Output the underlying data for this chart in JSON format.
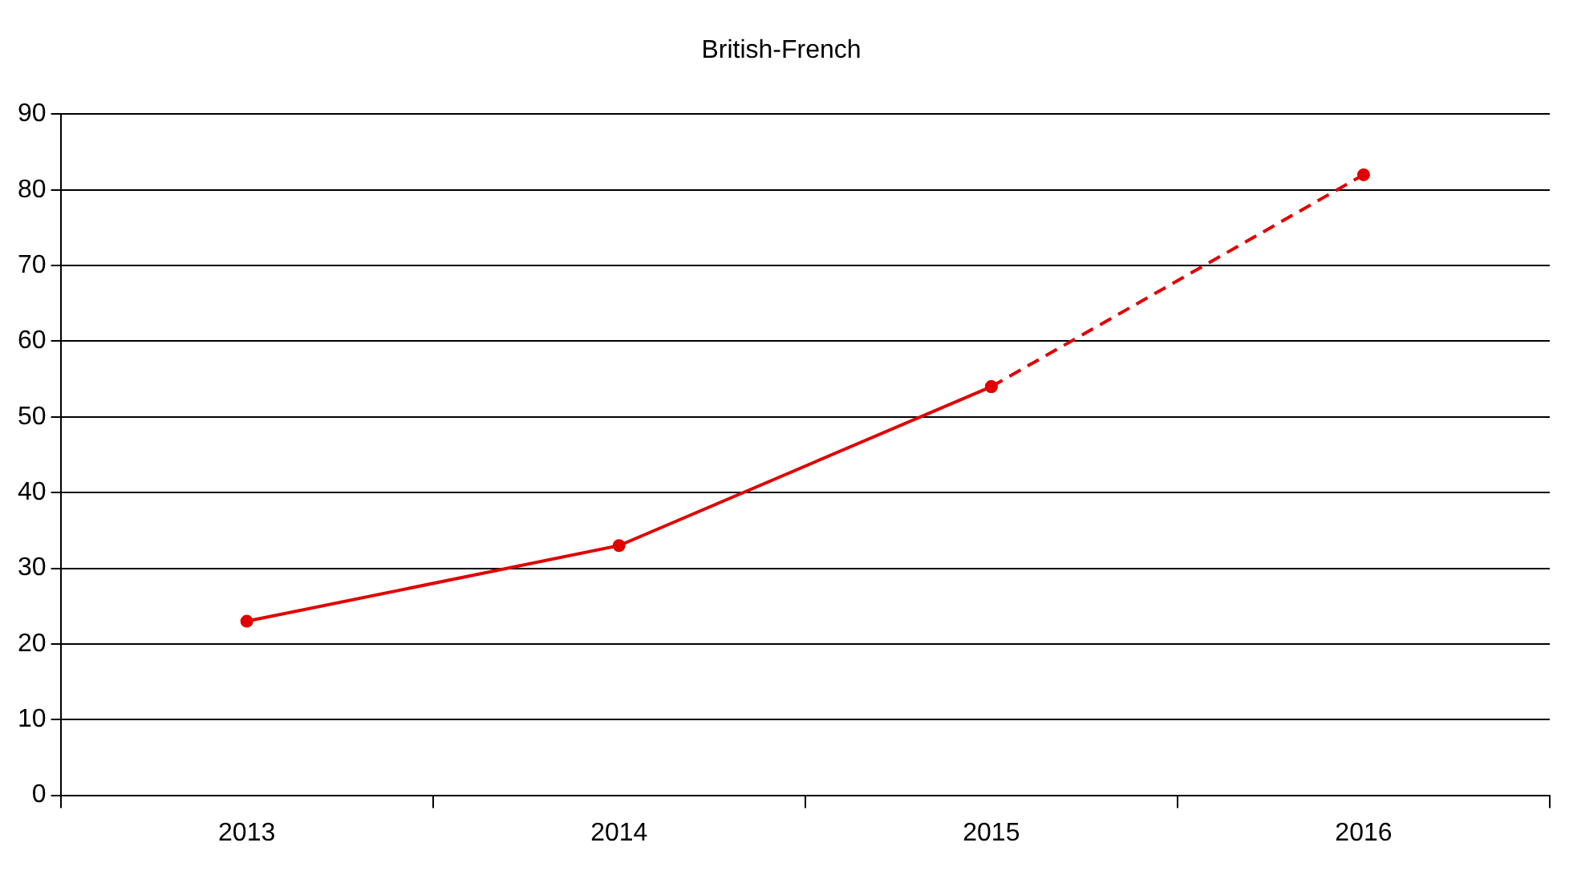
{
  "chart_data": {
    "type": "line",
    "title": "British-French",
    "categories": [
      "2013",
      "2014",
      "2015",
      "2016"
    ],
    "series": [
      {
        "color": "#e00000",
        "values": [
          23,
          33,
          54,
          null
        ],
        "line_style": "solid"
      },
      {
        "color": "#e00000",
        "values": [
          null,
          null,
          54,
          82
        ],
        "line_style": "dashed"
      }
    ],
    "ylim": [
      0,
      90
    ],
    "yticks": [
      0,
      10,
      20,
      30,
      40,
      50,
      60,
      70,
      80,
      90
    ],
    "grid": "y",
    "marker": "circle"
  }
}
